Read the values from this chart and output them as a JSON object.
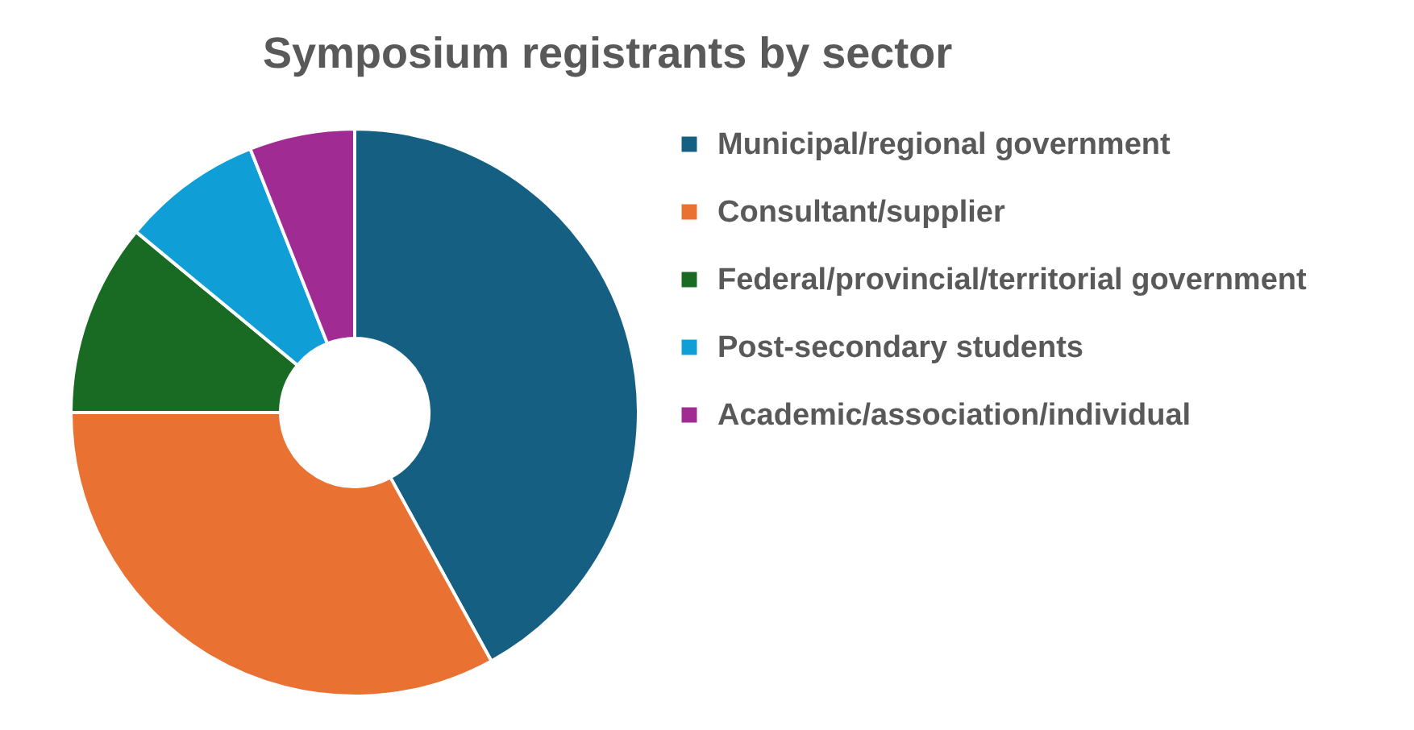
{
  "chart_data": {
    "type": "donut",
    "title": "Symposium registrants by sector",
    "categories": [
      "Municipal/regional government",
      "Consultant/supplier",
      "Federal/provincial/territorial government",
      "Post-secondary students",
      "Academic/association/individual"
    ],
    "values": [
      42,
      33,
      11,
      8,
      6
    ],
    "colors": [
      "#156082",
      "#e97132",
      "#196b24",
      "#0f9ed5",
      "#a02b93"
    ],
    "legend": "right"
  }
}
